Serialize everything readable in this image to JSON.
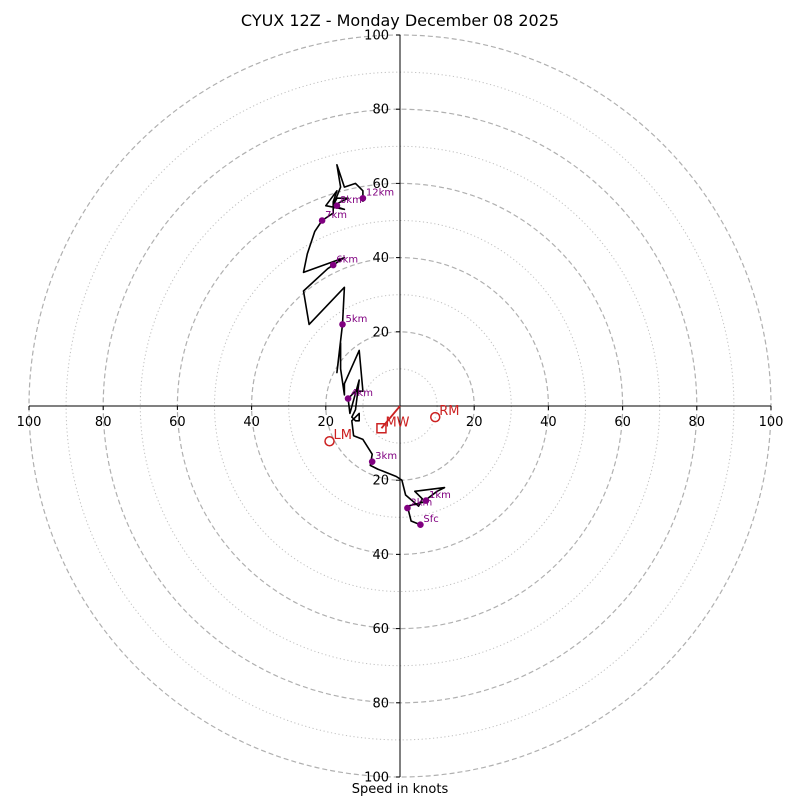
{
  "chart_data": {
    "type": "hodograph",
    "title": "CYUX 12Z - Monday December 08 2025",
    "xlabel": "Speed in knots",
    "units": "knots",
    "axis_range": [
      -100,
      100
    ],
    "ring_major": [
      20,
      40,
      60,
      80,
      100
    ],
    "ring_minor": [
      10,
      30,
      50,
      70,
      90
    ],
    "x_tick_labels": [
      "100",
      "80",
      "60",
      "40",
      "20",
      "20",
      "40",
      "60",
      "80",
      "100"
    ],
    "y_tick_labels": [
      "100",
      "80",
      "60",
      "40",
      "20",
      "20",
      "40",
      "60",
      "80",
      "100"
    ],
    "trace": [
      [
        5.5,
        -32
      ],
      [
        3,
        -31
      ],
      [
        2,
        -27
      ],
      [
        6,
        -26
      ],
      [
        10,
        -23
      ],
      [
        12,
        -22
      ],
      [
        4,
        -23
      ],
      [
        6,
        -25
      ],
      [
        5,
        -27
      ],
      [
        1.5,
        -24
      ],
      [
        0.5,
        -20
      ],
      [
        -1,
        -19
      ],
      [
        -6,
        -17
      ],
      [
        -8,
        -16
      ],
      [
        -7.5,
        -13
      ],
      [
        -10,
        -9
      ],
      [
        -12.5,
        -8
      ],
      [
        -13,
        -4
      ],
      [
        -11,
        -2
      ],
      [
        -11,
        -4
      ],
      [
        -12,
        -4
      ],
      [
        -13,
        -3
      ],
      [
        -12,
        -1
      ],
      [
        -11,
        7
      ],
      [
        -13.5,
        -2
      ],
      [
        -14,
        2
      ],
      [
        -12,
        4
      ],
      [
        -10,
        4
      ],
      [
        -11,
        15
      ],
      [
        -15,
        6
      ],
      [
        -15,
        3
      ],
      [
        -16,
        10
      ],
      [
        -16,
        17
      ],
      [
        -17,
        9
      ],
      [
        -15.5,
        22
      ],
      [
        -15,
        32
      ],
      [
        -24.5,
        22
      ],
      [
        -26,
        31
      ],
      [
        -19.5,
        37
      ],
      [
        -15,
        40
      ],
      [
        -26,
        36
      ],
      [
        -25,
        41
      ],
      [
        -23,
        47
      ],
      [
        -21,
        50
      ],
      [
        -18,
        52
      ],
      [
        -18,
        55
      ],
      [
        -17,
        58
      ],
      [
        -20,
        54
      ],
      [
        -15,
        53
      ],
      [
        -18,
        54
      ],
      [
        -14,
        56
      ],
      [
        -17,
        56
      ],
      [
        -18,
        54
      ],
      [
        -16,
        59
      ],
      [
        -17,
        65
      ],
      [
        -15,
        59
      ],
      [
        -12,
        60
      ],
      [
        -10,
        58
      ],
      [
        -10,
        55
      ]
    ],
    "height_markers": [
      {
        "label": "Sfc",
        "u": 5.5,
        "v": -32
      },
      {
        "label": "1km",
        "u": 7,
        "v": -25.5
      },
      {
        "label": "2km",
        "u": 2,
        "v": -27.5
      },
      {
        "label": "3km",
        "u": -7.5,
        "v": -15
      },
      {
        "label": "4km",
        "u": -14,
        "v": 2
      },
      {
        "label": "5km",
        "u": -15.5,
        "v": 22
      },
      {
        "label": "6km",
        "u": -18,
        "v": 38
      },
      {
        "label": "7km",
        "u": -21,
        "v": 50
      },
      {
        "label": "8km",
        "u": -17,
        "v": 54
      },
      {
        "label": "12km",
        "u": -10,
        "v": 56
      }
    ],
    "storm_motion": [
      {
        "label": "RM",
        "u": 9.5,
        "v": -3
      },
      {
        "label": "LM",
        "u": -19,
        "v": -9.5
      },
      {
        "label": "MW",
        "u": -5,
        "v": -6
      }
    ],
    "colors": {
      "trace": "#000000",
      "marker": "#800080",
      "storm": "#cc2222",
      "grid": "#b0b0b0",
      "axis": "#000000"
    }
  }
}
